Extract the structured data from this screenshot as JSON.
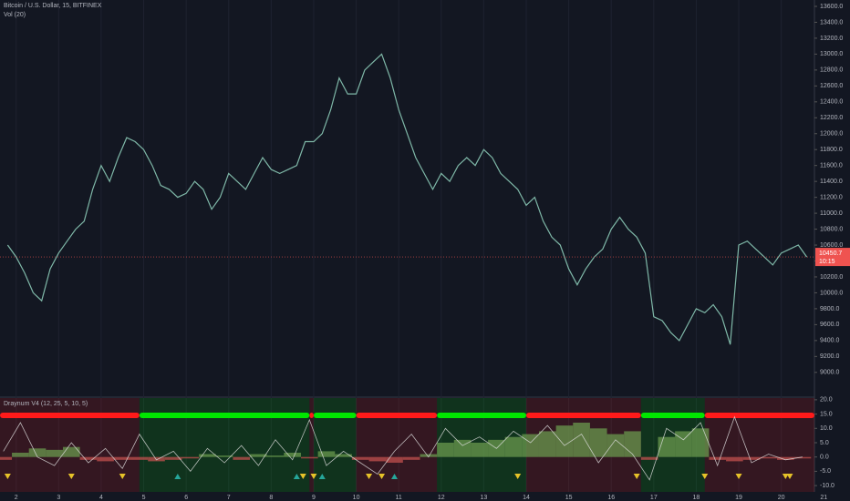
{
  "chart_data": [
    {
      "type": "line",
      "title": "Bitcoin / U.S. Dollar, 15, BITFINEX",
      "subtitle": "Vol (20)",
      "color": "#7fb8a8",
      "x": [
        1.8,
        2.0,
        2.2,
        2.4,
        2.6,
        2.8,
        3.0,
        3.2,
        3.4,
        3.6,
        3.8,
        4.0,
        4.2,
        4.4,
        4.6,
        4.8,
        5.0,
        5.2,
        5.4,
        5.6,
        5.8,
        6.0,
        6.2,
        6.4,
        6.6,
        6.8,
        7.0,
        7.2,
        7.4,
        7.6,
        7.8,
        8.0,
        8.2,
        8.4,
        8.6,
        8.8,
        9.0,
        9.2,
        9.4,
        9.6,
        9.8,
        10.0,
        10.2,
        10.4,
        10.6,
        10.8,
        11.0,
        11.2,
        11.4,
        11.6,
        11.8,
        12.0,
        12.2,
        12.4,
        12.6,
        12.8,
        13.0,
        13.2,
        13.4,
        13.6,
        13.8,
        14.0,
        14.2,
        14.4,
        14.6,
        14.8,
        15.0,
        15.2,
        15.4,
        15.6,
        15.8,
        16.0,
        16.2,
        16.4,
        16.6,
        16.8,
        17.0,
        17.2,
        17.4,
        17.6,
        17.8,
        18.0,
        18.2,
        18.4,
        18.6,
        18.8,
        19.0,
        19.2,
        19.4,
        19.6,
        19.8,
        20.0,
        20.2,
        20.4,
        20.6
      ],
      "values": [
        10600,
        10450,
        10250,
        10000,
        9900,
        10300,
        10500,
        10650,
        10800,
        10900,
        11300,
        11600,
        11400,
        11700,
        11950,
        11900,
        11800,
        11600,
        11350,
        11300,
        11200,
        11250,
        11400,
        11300,
        11050,
        11200,
        11500,
        11400,
        11300,
        11500,
        11700,
        11550,
        11500,
        11550,
        11600,
        11900,
        11900,
        12000,
        12300,
        12700,
        12500,
        12500,
        12800,
        12900,
        13000,
        12700,
        12300,
        12000,
        11700,
        11500,
        11300,
        11500,
        11400,
        11600,
        11700,
        11600,
        11800,
        11700,
        11500,
        11400,
        11300,
        11100,
        11200,
        10900,
        10700,
        10600,
        10300,
        10100,
        10300,
        10450,
        10550,
        10800,
        10950,
        10800,
        10700,
        10500,
        9700,
        9650,
        9500,
        9400,
        9600,
        9800,
        9750,
        9850,
        9700,
        9350,
        10600,
        10650,
        10550,
        10450,
        10350,
        10500,
        10550,
        10600,
        10450
      ],
      "xlim": [
        1.62,
        20.78
      ],
      "xticks": [
        2,
        3,
        4,
        5,
        6,
        7,
        8,
        9,
        10,
        11,
        12,
        13,
        14,
        15,
        16,
        17,
        18,
        19,
        20,
        21
      ],
      "ylim": [
        8700,
        13680
      ],
      "yticks": [
        {
          "value": 9000,
          "label": "9000.0"
        },
        {
          "value": 9200,
          "label": "9200.0"
        },
        {
          "value": 9400,
          "label": "9400.0"
        },
        {
          "value": 9600,
          "label": "9600.0"
        },
        {
          "value": 9800,
          "label": "9800.0"
        },
        {
          "value": 10000,
          "label": "10000.0"
        },
        {
          "value": 10200,
          "label": "10200.0"
        },
        {
          "value": 10400,
          "label": "10400.0"
        },
        {
          "value": 10600,
          "label": "10600.0"
        },
        {
          "value": 10800,
          "label": "10800.0"
        },
        {
          "value": 11000,
          "label": "11000.0"
        },
        {
          "value": 11200,
          "label": "11200.0"
        },
        {
          "value": 11400,
          "label": "11400.0"
        },
        {
          "value": 11600,
          "label": "11600.0"
        },
        {
          "value": 11800,
          "label": "11800.0"
        },
        {
          "value": 12000,
          "label": "12000.0"
        },
        {
          "value": 12200,
          "label": "12200.0"
        },
        {
          "value": 12400,
          "label": "12400.0"
        },
        {
          "value": 12600,
          "label": "12600.0"
        },
        {
          "value": 12800,
          "label": "12800.0"
        },
        {
          "value": 13000,
          "label": "13000.0"
        },
        {
          "value": 13200,
          "label": "13200.0"
        },
        {
          "value": 13400,
          "label": "13400.0"
        },
        {
          "value": 13600,
          "label": "13600.0"
        }
      ],
      "grid": true,
      "last_price": 10450.7,
      "last_price_color": "#ef5350",
      "countdown": "10:15"
    },
    {
      "type": "oscillator",
      "title": "Draynum V4 (12, 25, 5, 10, 5)",
      "x": [
        1.7,
        2.1,
        2.5,
        2.9,
        3.3,
        3.7,
        4.1,
        4.5,
        4.9,
        5.3,
        5.7,
        6.1,
        6.5,
        6.9,
        7.3,
        7.7,
        8.1,
        8.5,
        8.9,
        9.3,
        9.7,
        10.1,
        10.5,
        10.9,
        11.3,
        11.7,
        12.1,
        12.5,
        12.9,
        13.3,
        13.7,
        14.1,
        14.5,
        14.9,
        15.3,
        15.7,
        16.1,
        16.5,
        16.9,
        17.3,
        17.7,
        18.1,
        18.5,
        18.9,
        19.3,
        19.7,
        20.1,
        20.5
      ],
      "histogram": [
        -1,
        1.5,
        3,
        2.5,
        3.5,
        -1,
        -1.5,
        -1,
        -1,
        -1.5,
        -1,
        -0.5,
        1,
        0.5,
        -1,
        1,
        0.5,
        1.5,
        -0.5,
        2,
        1,
        -1,
        -1.5,
        -2,
        -1,
        1,
        5,
        6,
        5,
        6,
        7,
        8,
        9,
        11,
        12,
        10,
        8,
        9,
        -1,
        7,
        9,
        10,
        -1,
        -1.5,
        -1,
        -0.5,
        -1,
        -0.5
      ],
      "line": [
        2,
        12,
        0,
        -3,
        5,
        -2,
        3,
        -4,
        8,
        -1,
        2,
        -5,
        3,
        -2,
        4,
        -3,
        6,
        -1,
        13,
        -3,
        2,
        -2,
        -6,
        2,
        8,
        0,
        10,
        4,
        7,
        3,
        9,
        5,
        11,
        4,
        8,
        -2,
        6,
        1,
        -8,
        10,
        6,
        12,
        -3,
        14,
        -2,
        1,
        -1,
        0
      ],
      "pos_color": "#6a9a4e",
      "neg_color": "#c0504d",
      "line_color": "#e0e0e0",
      "bull_color": "#00e600",
      "bear_color": "#ff1a1a",
      "segments": [
        {
          "start": 1.62,
          "end": 4.9,
          "state": "bear"
        },
        {
          "start": 4.9,
          "end": 8.9,
          "state": "bull"
        },
        {
          "start": 8.9,
          "end": 9.0,
          "state": "bear"
        },
        {
          "start": 9.0,
          "end": 10.0,
          "state": "bull"
        },
        {
          "start": 10.0,
          "end": 11.9,
          "state": "bear"
        },
        {
          "start": 11.9,
          "end": 14.0,
          "state": "bull"
        },
        {
          "start": 14.0,
          "end": 16.7,
          "state": "bear"
        },
        {
          "start": 16.7,
          "end": 18.2,
          "state": "bull"
        },
        {
          "start": 18.2,
          "end": 20.78,
          "state": "bear"
        }
      ],
      "markers": [
        {
          "x": 1.8,
          "dir": "down"
        },
        {
          "x": 3.3,
          "dir": "down"
        },
        {
          "x": 4.5,
          "dir": "down"
        },
        {
          "x": 5.8,
          "dir": "up"
        },
        {
          "x": 8.6,
          "dir": "up"
        },
        {
          "x": 8.75,
          "dir": "down"
        },
        {
          "x": 9.0,
          "dir": "down"
        },
        {
          "x": 9.2,
          "dir": "up"
        },
        {
          "x": 10.3,
          "dir": "down"
        },
        {
          "x": 10.6,
          "dir": "down"
        },
        {
          "x": 10.9,
          "dir": "up"
        },
        {
          "x": 13.8,
          "dir": "down"
        },
        {
          "x": 16.6,
          "dir": "down"
        },
        {
          "x": 18.2,
          "dir": "down"
        },
        {
          "x": 19.0,
          "dir": "down"
        },
        {
          "x": 20.1,
          "dir": "down"
        },
        {
          "x": 20.2,
          "dir": "down"
        }
      ],
      "up_color": "#26a69a",
      "down_color": "#e6c229",
      "ylim": [
        -12.2,
        20.6
      ],
      "yticks": [
        {
          "value": 20,
          "label": "20.0"
        },
        {
          "value": 15,
          "label": "15.0"
        },
        {
          "value": 10,
          "label": "10.0"
        },
        {
          "value": 5,
          "label": "5.0"
        },
        {
          "value": 0,
          "label": "0.0"
        },
        {
          "value": -5,
          "label": "-5.0"
        },
        {
          "value": -10,
          "label": "-10.0"
        }
      ]
    }
  ]
}
